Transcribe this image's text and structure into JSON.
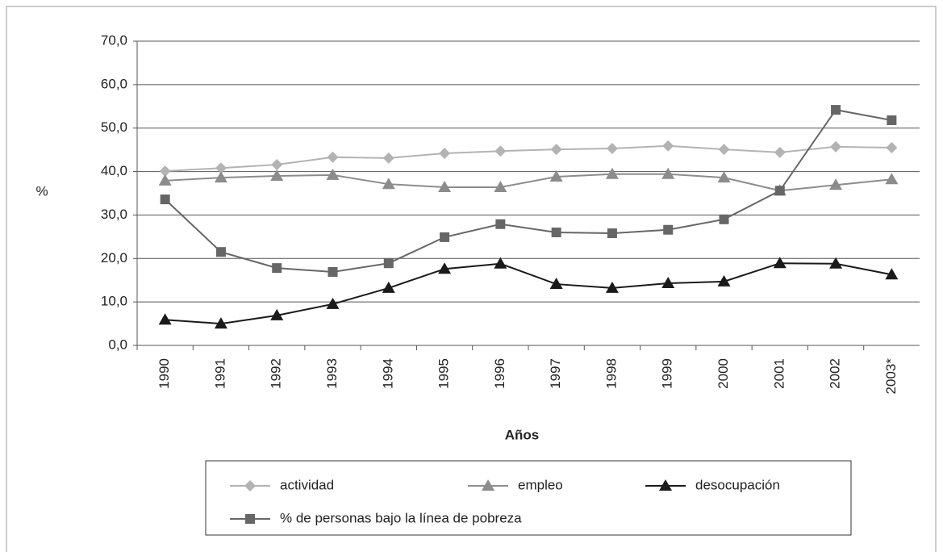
{
  "chart_data": {
    "type": "line",
    "x_label": "Años",
    "y_label": "%",
    "categories": [
      "1990",
      "1991",
      "1992",
      "1993",
      "1994",
      "1995",
      "1996",
      "1997",
      "1998",
      "1999",
      "2000",
      "2001",
      "2002",
      "2003*"
    ],
    "series": [
      {
        "name": "actividad",
        "color": "#b3b3b3",
        "marker": "diamond",
        "values": [
          40.1,
          40.8,
          41.6,
          43.3,
          43.1,
          44.2,
          44.7,
          45.1,
          45.3,
          45.9,
          45.1,
          44.4,
          45.7,
          45.5
        ]
      },
      {
        "name": "empleo",
        "color": "#8c8c8c",
        "marker": "triangle",
        "values": [
          37.9,
          38.6,
          39.0,
          39.2,
          37.1,
          36.4,
          36.4,
          38.8,
          39.4,
          39.4,
          38.6,
          35.6,
          36.9,
          38.2
        ]
      },
      {
        "name": "desocupación",
        "color": "#1a1a1a",
        "marker": "triangle",
        "values": [
          5.9,
          5.0,
          6.9,
          9.5,
          13.2,
          17.6,
          18.8,
          14.1,
          13.2,
          14.3,
          14.7,
          18.9,
          18.8,
          16.3
        ]
      },
      {
        "name": "% de personas bajo la línea de pobreza",
        "color": "#666666",
        "marker": "square",
        "values": [
          33.6,
          21.5,
          17.8,
          16.9,
          18.9,
          24.9,
          27.9,
          26.0,
          25.8,
          26.6,
          29.0,
          35.6,
          54.2,
          51.8
        ]
      }
    ],
    "ylim": [
      0,
      70
    ],
    "yticks": [
      {
        "value": 0,
        "label": "0,0"
      },
      {
        "value": 10,
        "label": "10,0"
      },
      {
        "value": 20,
        "label": "20,0"
      },
      {
        "value": 30,
        "label": "30,0"
      },
      {
        "value": 40,
        "label": "40,0"
      },
      {
        "value": 50,
        "label": "50,0"
      },
      {
        "value": 60,
        "label": "60,0"
      },
      {
        "value": 70,
        "label": "70,0"
      }
    ],
    "grid": true
  }
}
